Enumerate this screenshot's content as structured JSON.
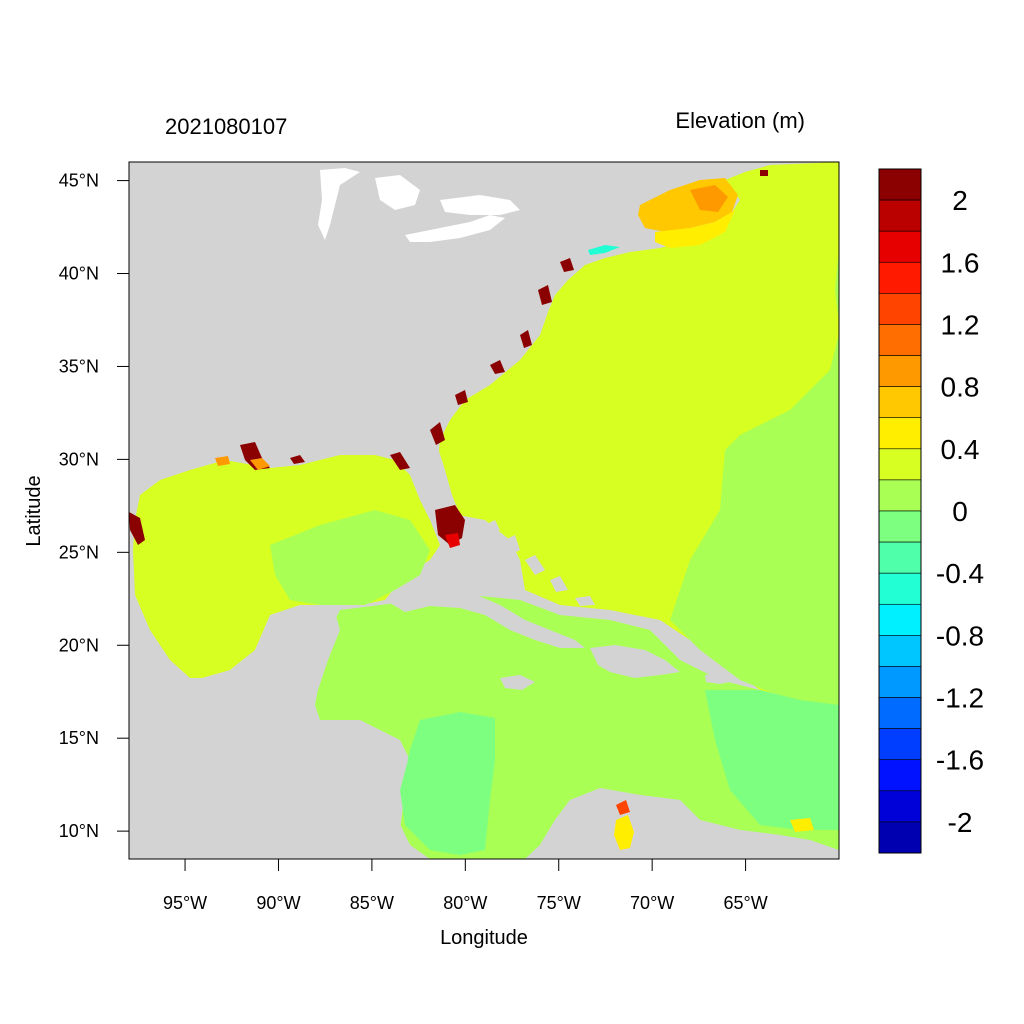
{
  "title_left": "2021080107",
  "title_right": "Elevation (m)",
  "x_axis_label": "Longitude",
  "y_axis_label": "Latitude",
  "lon_range": [
    -98,
    -60
  ],
  "lat_range": [
    8.5,
    46
  ],
  "lon_ticks": [
    {
      "value": -95,
      "label": "95°W"
    },
    {
      "value": -90,
      "label": "90°W"
    },
    {
      "value": -85,
      "label": "85°W"
    },
    {
      "value": -80,
      "label": "80°W"
    },
    {
      "value": -75,
      "label": "75°W"
    },
    {
      "value": -70,
      "label": "70°W"
    },
    {
      "value": -65,
      "label": "65°W"
    }
  ],
  "lat_ticks": [
    {
      "value": 45,
      "label": "45°N"
    },
    {
      "value": 40,
      "label": "40°N"
    },
    {
      "value": 35,
      "label": "35°N"
    },
    {
      "value": 30,
      "label": "30°N"
    },
    {
      "value": 25,
      "label": "25°N"
    },
    {
      "value": 20,
      "label": "20°N"
    },
    {
      "value": 15,
      "label": "15°N"
    },
    {
      "value": 10,
      "label": "10°N"
    }
  ],
  "colorbar": {
    "colors_top_to_bottom": [
      "#8b0000",
      "#bb0000",
      "#e60000",
      "#ff1a00",
      "#ff4400",
      "#ff6e00",
      "#ff9900",
      "#ffc800",
      "#ffee00",
      "#d8ff22",
      "#aaff55",
      "#7dff80",
      "#50ffaa",
      "#22ffd5",
      "#00f0ff",
      "#00c6ff",
      "#0099ff",
      "#006bff",
      "#003eff",
      "#0012ff",
      "#0000d8",
      "#0000b0"
    ],
    "labels": [
      "2",
      "1.6",
      "1.2",
      "0.8",
      "0.4",
      "0",
      "-0.4",
      "-0.8",
      "-1.2",
      "-1.6",
      "-2"
    ]
  },
  "colors": {
    "land": "#d3d3d3",
    "lakes": "#ffffff",
    "ocean_north_atlantic": "#d8ff22",
    "ocean_gulf_caribbean": "#aaff55",
    "ocean_low": "#7dff80",
    "high_water": "#8b0000",
    "gulf_of_maine": "#ffc800"
  }
}
